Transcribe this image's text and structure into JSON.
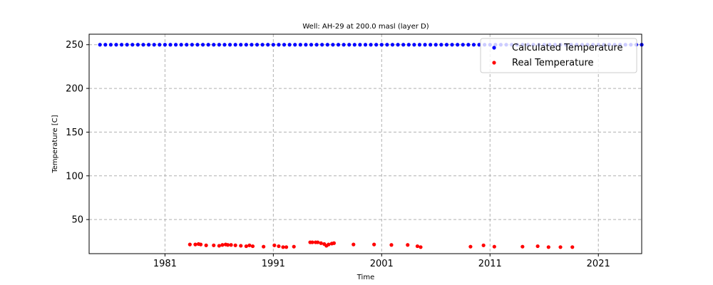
{
  "chart_data": {
    "type": "scatter",
    "title": "Well: AH-29 at 200.0 masl (layer D)",
    "xlabel": "Time",
    "ylabel": "Temperature [C]",
    "xlim": [
      1974.0,
      2025.0
    ],
    "ylim": [
      11.0,
      262.0
    ],
    "x_ticks": [
      1981,
      1991,
      2001,
      2011,
      2021
    ],
    "y_ticks": [
      50,
      100,
      150,
      200,
      250
    ],
    "grid": true,
    "legend_position": "top-right",
    "series": [
      {
        "name": "Calculated Temperature",
        "color": "#0000ff",
        "x_start": 1975.0,
        "x_step": 0.5,
        "count": 101,
        "y_constant": 250
      },
      {
        "name": "Real Temperature",
        "color": "#ff0000",
        "points": [
          [
            1983.3,
            21.5
          ],
          [
            1983.8,
            21.5
          ],
          [
            1984.1,
            22.0
          ],
          [
            1984.3,
            21.5
          ],
          [
            1984.8,
            20.5
          ],
          [
            1985.5,
            20.5
          ],
          [
            1986.0,
            20.0
          ],
          [
            1986.3,
            21.0
          ],
          [
            1986.6,
            21.5
          ],
          [
            1986.8,
            21.0
          ],
          [
            1987.1,
            21.0
          ],
          [
            1987.5,
            20.5
          ],
          [
            1988.0,
            20.0
          ],
          [
            1988.5,
            19.5
          ],
          [
            1988.8,
            20.5
          ],
          [
            1989.1,
            19.5
          ],
          [
            1990.1,
            19.0
          ],
          [
            1991.1,
            20.5
          ],
          [
            1991.5,
            19.5
          ],
          [
            1991.9,
            18.5
          ],
          [
            1992.2,
            18.5
          ],
          [
            1992.9,
            19.0
          ],
          [
            1994.4,
            24.0
          ],
          [
            1994.6,
            24.0
          ],
          [
            1994.9,
            24.0
          ],
          [
            1995.1,
            24.0
          ],
          [
            1995.4,
            23.0
          ],
          [
            1995.7,
            22.0
          ],
          [
            1995.9,
            20.0
          ],
          [
            1996.1,
            21.5
          ],
          [
            1996.4,
            22.5
          ],
          [
            1996.6,
            23.0
          ],
          [
            1998.4,
            21.5
          ],
          [
            2000.3,
            21.5
          ],
          [
            2001.9,
            21.0
          ],
          [
            2003.4,
            21.0
          ],
          [
            2004.3,
            19.5
          ],
          [
            2004.6,
            18.5
          ],
          [
            2009.2,
            19.0
          ],
          [
            2010.4,
            20.5
          ],
          [
            2011.4,
            19.0
          ],
          [
            2014.0,
            19.0
          ],
          [
            2015.4,
            19.5
          ],
          [
            2016.4,
            18.5
          ],
          [
            2017.5,
            18.5
          ],
          [
            2018.6,
            18.5
          ]
        ]
      }
    ]
  }
}
